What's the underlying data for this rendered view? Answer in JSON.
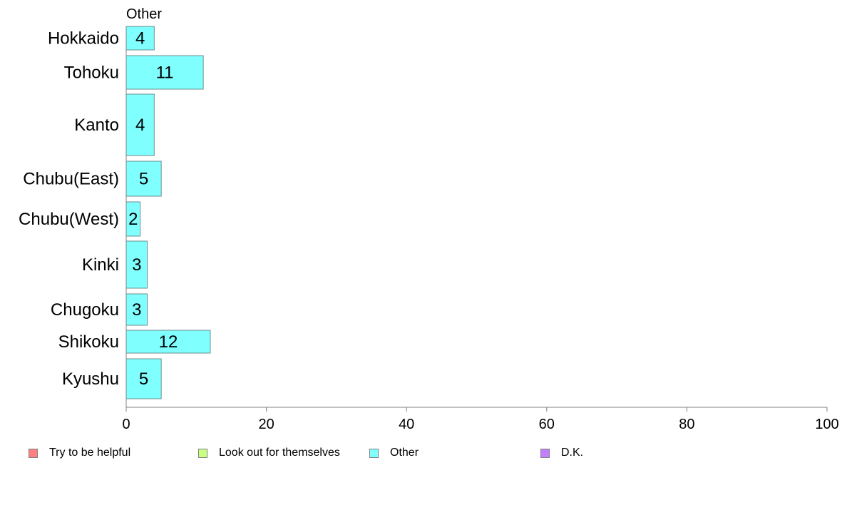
{
  "chart_data": {
    "type": "bar",
    "orientation": "horizontal",
    "title": "Other",
    "categories": [
      "Hokkaido",
      "Tohoku",
      "Kanto",
      "Chubu(East)",
      "Chubu(West)",
      "Kinki",
      "Chugoku",
      "Shikoku",
      "Kyushu"
    ],
    "series": [
      {
        "name": "Other",
        "values": [
          4,
          11,
          4,
          5,
          2,
          3,
          3,
          12,
          5
        ],
        "color": "#80ffff"
      }
    ],
    "bar_labels": [
      "4",
      "11",
      "4",
      "5",
      "2",
      "3",
      "3",
      "12",
      "5"
    ],
    "xlim": [
      0,
      100
    ],
    "xticks": [
      0,
      20,
      40,
      60,
      80,
      100
    ],
    "xtick_labels": [
      "0",
      "20",
      "40",
      "60",
      "80",
      "100"
    ],
    "grid": false,
    "legend_position": "bottom",
    "legend": [
      {
        "label": "Try to be helpful",
        "color": "#ff8080"
      },
      {
        "label": "Look out for themselves",
        "color": "#c8ff80"
      },
      {
        "label": "Other",
        "color": "#80ffff"
      },
      {
        "label": "D.K.",
        "color": "#c080ff"
      }
    ]
  }
}
